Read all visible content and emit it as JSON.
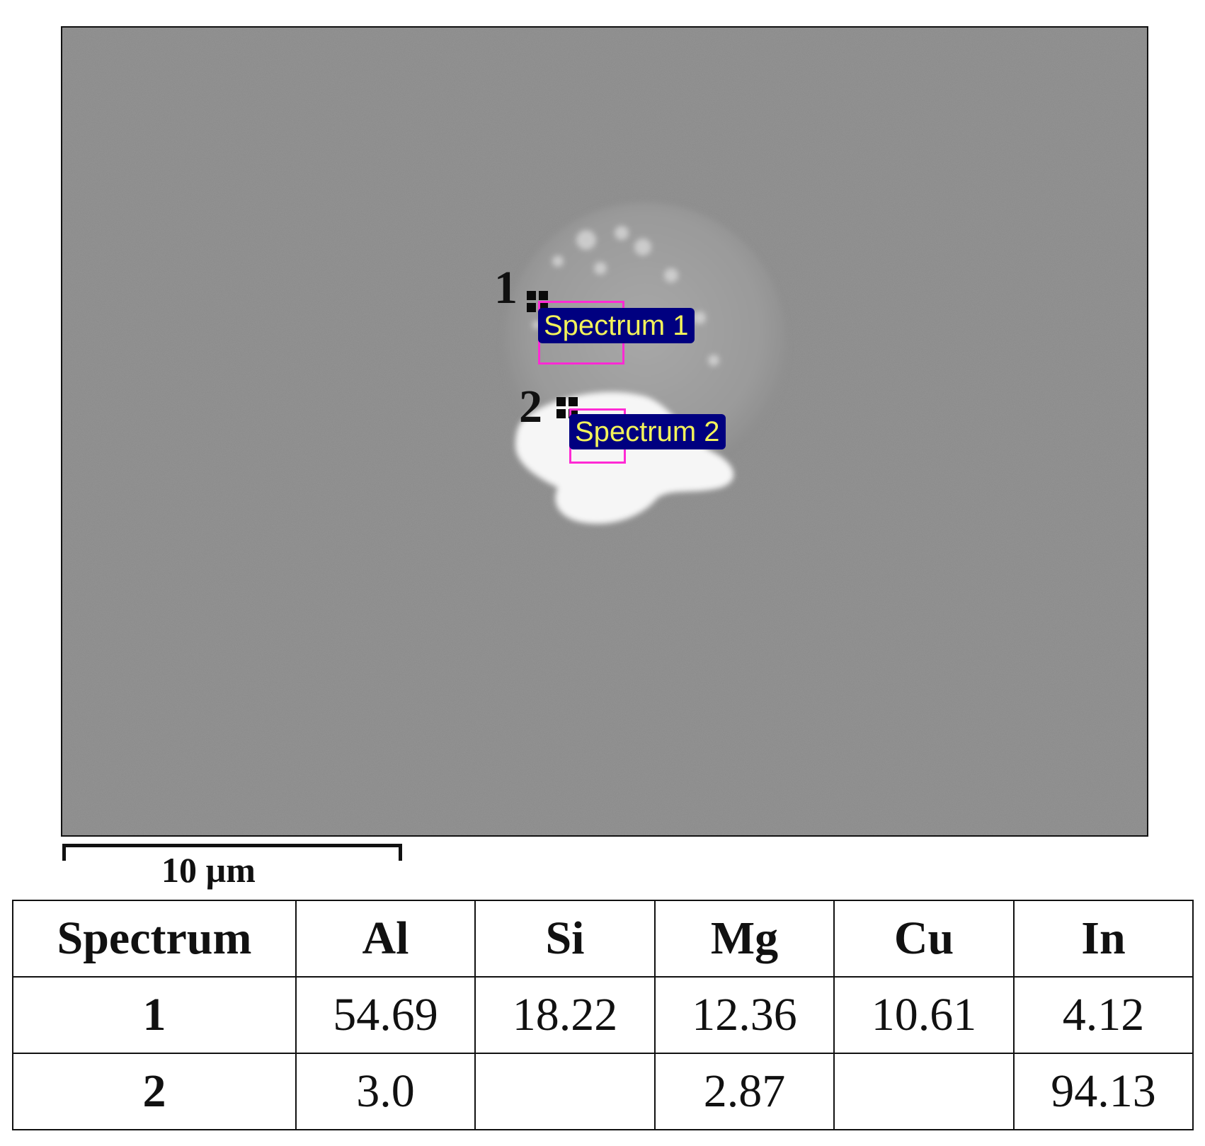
{
  "image": {
    "markers": [
      {
        "number": "1",
        "label": "Spectrum 1"
      },
      {
        "number": "2",
        "label": "Spectrum 2"
      }
    ]
  },
  "scale_bar": {
    "label": "10 µm"
  },
  "table": {
    "headers": [
      "Spectrum",
      "Al",
      "Si",
      "Mg",
      "Cu",
      "In"
    ],
    "rows": [
      [
        "1",
        "54.69",
        "18.22",
        "12.36",
        "10.61",
        "4.12"
      ],
      [
        "2",
        "3.0",
        "",
        "2.87",
        "",
        "94.13"
      ]
    ]
  },
  "colors": {
    "background": "#8a8a8a",
    "label_bg": "#000080",
    "label_text": "#f2f25a",
    "box": "#ff2ad4"
  }
}
